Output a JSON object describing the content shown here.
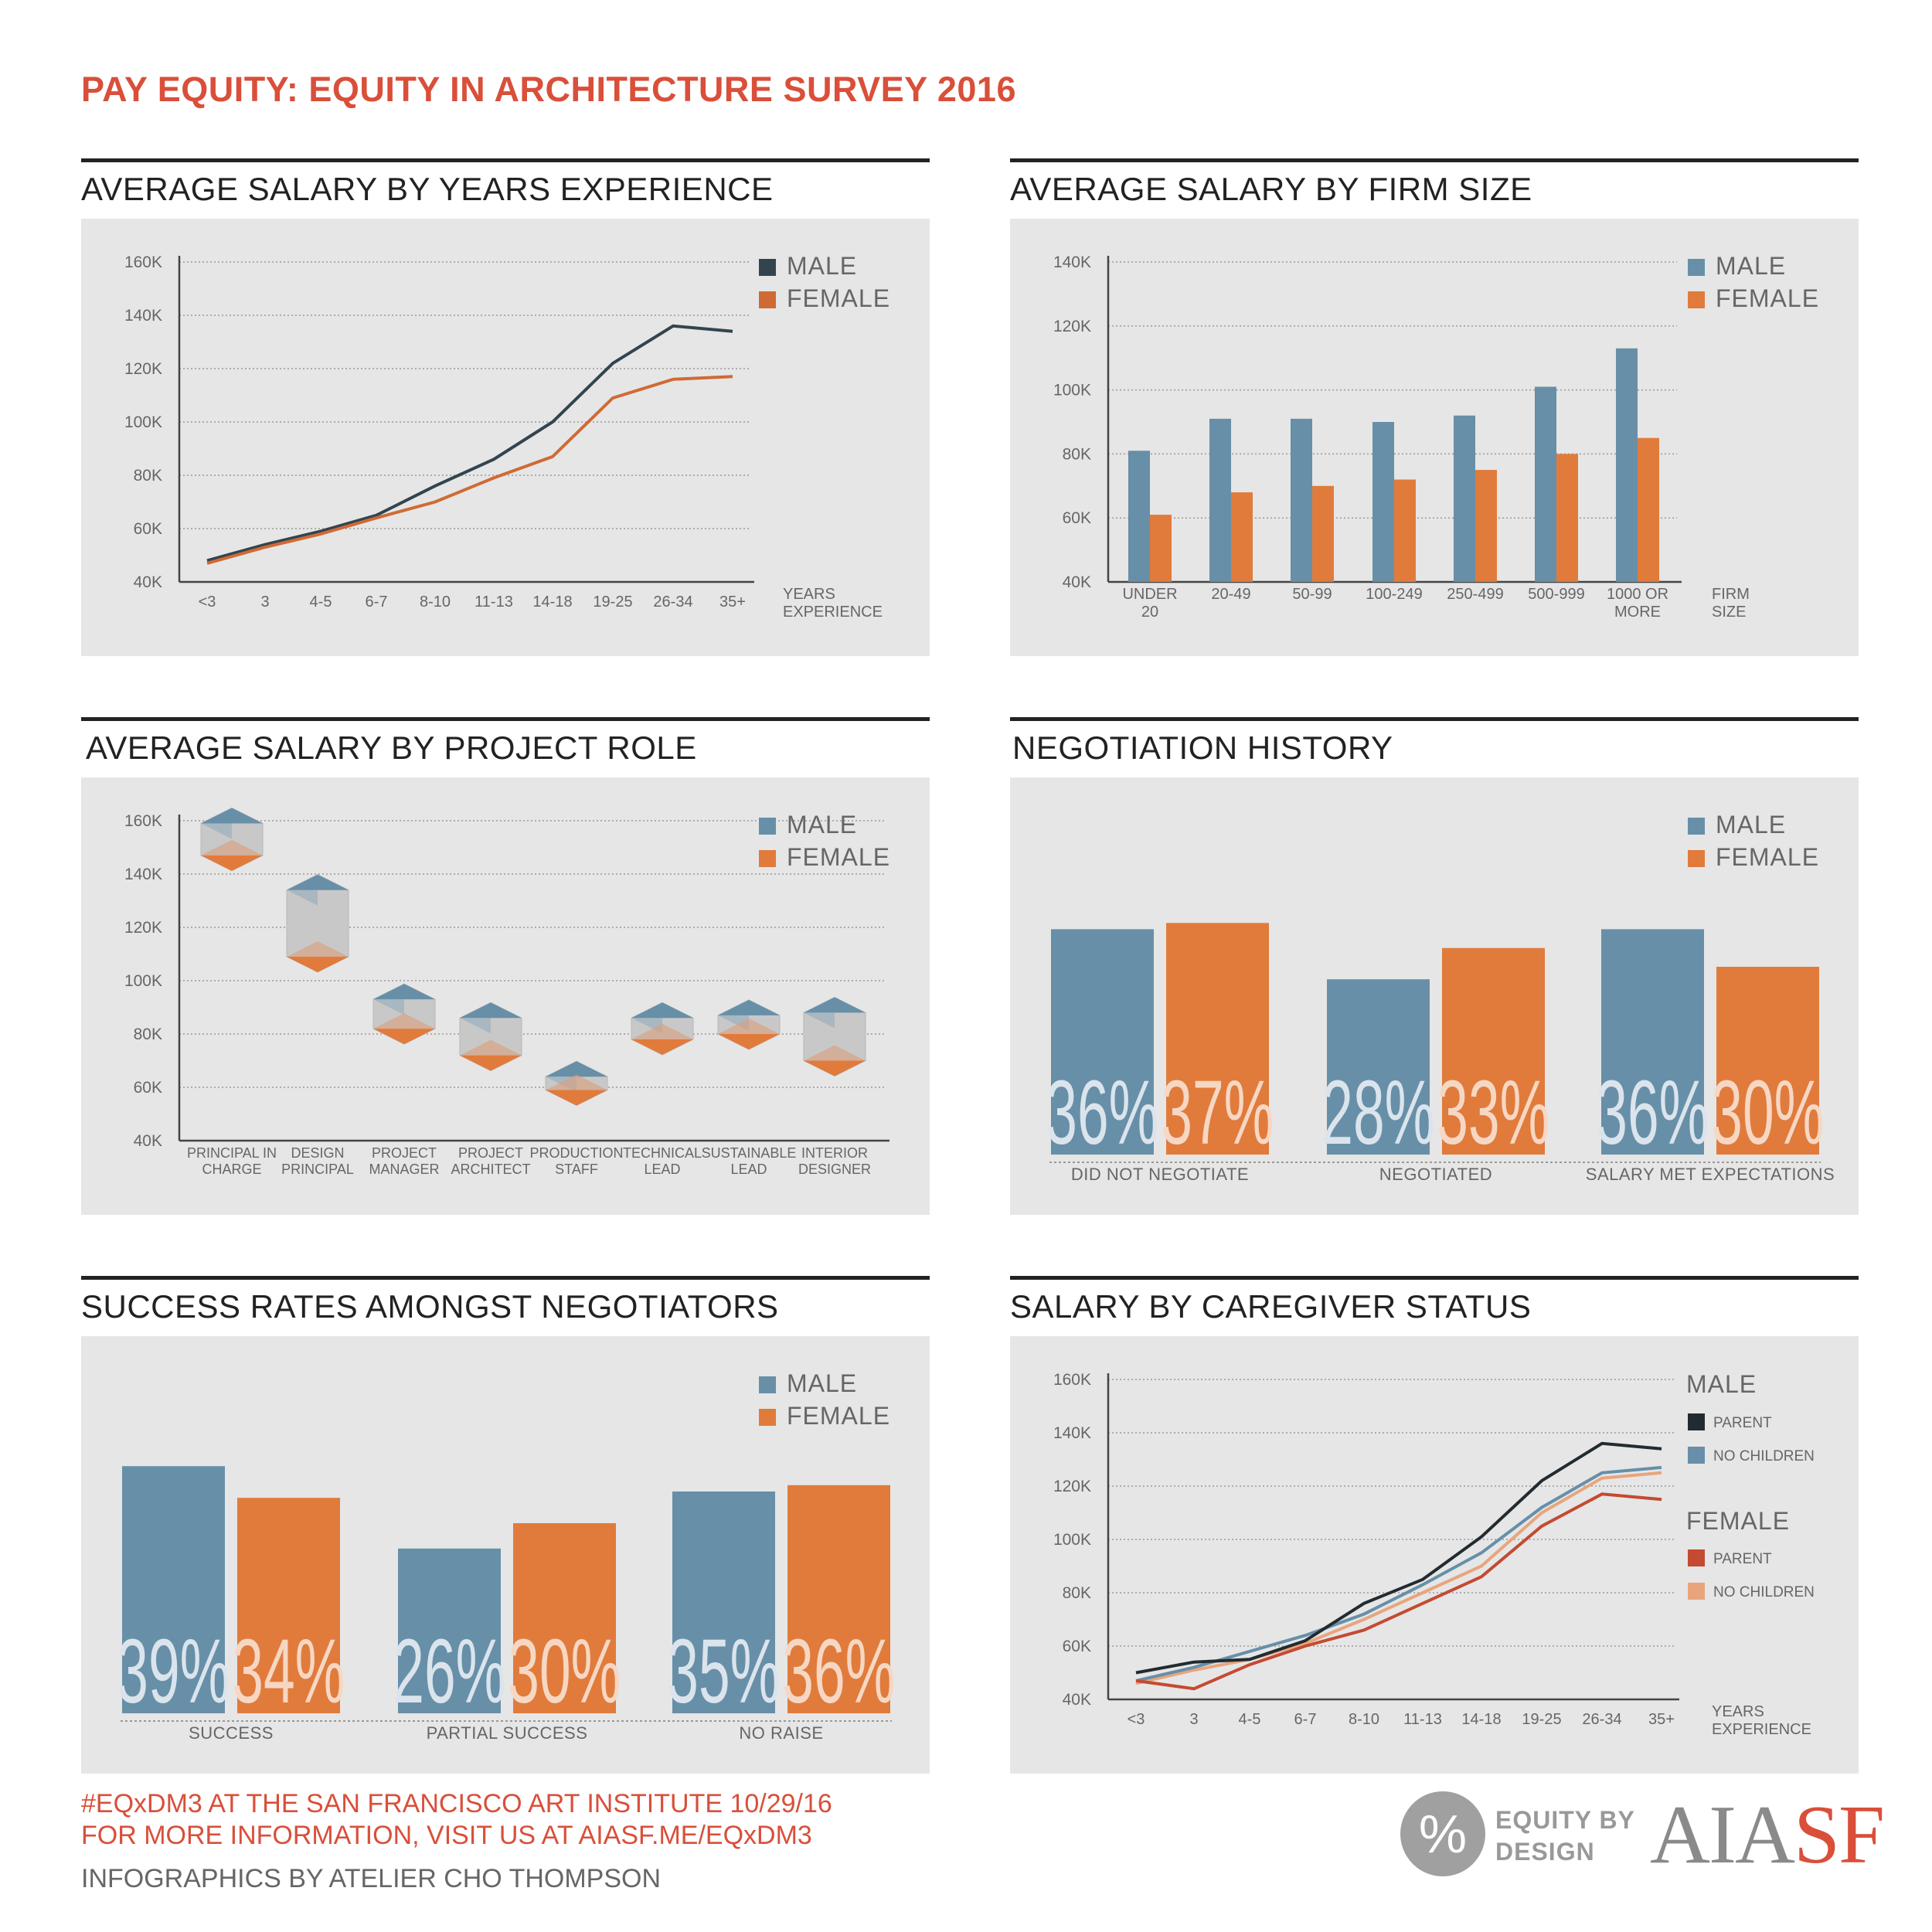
{
  "title": "PAY EQUITY: EQUITY IN ARCHITECTURE SURVEY 2016",
  "colors": {
    "male_blue": "#678fa8",
    "male_dark": "#33444f",
    "female_orange": "#e07b3c",
    "female_line": "#d06a35",
    "parent_male": "#222b30",
    "parent_female": "#c44a32",
    "nochild_female": "#e8a57c",
    "red": "#d94f3a"
  },
  "sections": {
    "years": "AVERAGE SALARY BY YEARS EXPERIENCE",
    "firm": "AVERAGE SALARY BY FIRM SIZE",
    "role": "AVERAGE SALARY BY PROJECT ROLE",
    "negotiation": "NEGOTIATION HISTORY",
    "success": "SUCCESS RATES AMONGST NEGOTIATORS",
    "caregiver": "SALARY BY CAREGIVER STATUS"
  },
  "legend": {
    "male": "MALE",
    "female": "FEMALE",
    "parent": "PARENT",
    "no_children": "NO CHILDREN"
  },
  "chart_data": [
    {
      "id": "years",
      "type": "line",
      "title": "AVERAGE SALARY BY YEARS EXPERIENCE",
      "categories": [
        "<3",
        "3",
        "4-5",
        "6-7",
        "8-10",
        "11-13",
        "14-18",
        "19-25",
        "26-34",
        "35+"
      ],
      "xlabel": [
        "YEARS",
        "EXPERIENCE"
      ],
      "yticks": [
        "40K",
        "60K",
        "80K",
        "100K",
        "120K",
        "140K",
        "160K"
      ],
      "ylim": [
        40,
        160
      ],
      "series": [
        {
          "name": "MALE",
          "values": [
            48,
            54,
            59,
            65,
            76,
            86,
            100,
            122,
            136,
            134
          ]
        },
        {
          "name": "FEMALE",
          "values": [
            47,
            53,
            58,
            64,
            70,
            79,
            87,
            109,
            116,
            117
          ]
        }
      ]
    },
    {
      "id": "firm",
      "type": "bar",
      "title": "AVERAGE SALARY BY FIRM SIZE",
      "categories": [
        [
          "UNDER",
          "20"
        ],
        [
          "20-49"
        ],
        [
          "50-99"
        ],
        [
          "100-249"
        ],
        [
          "250-499"
        ],
        [
          "500-999"
        ],
        [
          "1000 OR",
          "MORE"
        ]
      ],
      "xlabel": [
        "FIRM",
        "SIZE"
      ],
      "yticks": [
        "40K",
        "60K",
        "80K",
        "100K",
        "120K",
        "140K"
      ],
      "ylim": [
        40,
        140
      ],
      "series": [
        {
          "name": "MALE",
          "values": [
            81,
            91,
            91,
            90,
            92,
            101,
            113
          ]
        },
        {
          "name": "FEMALE",
          "values": [
            61,
            68,
            70,
            72,
            75,
            80,
            85
          ]
        }
      ]
    },
    {
      "id": "role",
      "type": "range",
      "title": "AVERAGE SALARY BY PROJECT ROLE",
      "categories": [
        [
          "PRINCIPAL IN",
          "CHARGE"
        ],
        [
          "DESIGN",
          "PRINCIPAL"
        ],
        [
          "PROJECT",
          "MANAGER"
        ],
        [
          "PROJECT",
          "ARCHITECT"
        ],
        [
          "PRODUCTION",
          "STAFF"
        ],
        [
          "TECHNICAL",
          "LEAD"
        ],
        [
          "SUSTAINABLE",
          "LEAD"
        ],
        [
          "INTERIOR",
          "DESIGNER"
        ]
      ],
      "yticks": [
        "40K",
        "60K",
        "80K",
        "100K",
        "120K",
        "140K",
        "160K"
      ],
      "ylim": [
        40,
        160
      ],
      "series": [
        {
          "name": "MALE",
          "values": [
            159,
            134,
            93,
            86,
            64,
            86,
            87,
            88
          ]
        },
        {
          "name": "FEMALE",
          "values": [
            147,
            109,
            82,
            72,
            59,
            78,
            80,
            70
          ]
        }
      ]
    },
    {
      "id": "negotiation",
      "type": "bar",
      "title": "NEGOTIATION HISTORY",
      "categories": [
        "DID NOT NEGOTIATE",
        "NEGOTIATED",
        "SALARY MET EXPECTATIONS"
      ],
      "series": [
        {
          "name": "MALE",
          "values": [
            36,
            28,
            36
          ],
          "labels": [
            "36%",
            "28%",
            "36%"
          ]
        },
        {
          "name": "FEMALE",
          "values": [
            37,
            33,
            30
          ],
          "labels": [
            "37%",
            "33%",
            "30%"
          ]
        }
      ]
    },
    {
      "id": "success",
      "type": "bar",
      "title": "SUCCESS RATES AMONGST NEGOTIATORS",
      "categories": [
        "SUCCESS",
        "PARTIAL SUCCESS",
        "NO RAISE"
      ],
      "series": [
        {
          "name": "MALE",
          "values": [
            39,
            26,
            35
          ],
          "labels": [
            "39%",
            "26%",
            "35%"
          ]
        },
        {
          "name": "FEMALE",
          "values": [
            34,
            30,
            36
          ],
          "labels": [
            "34%",
            "30%",
            "36%"
          ]
        }
      ]
    },
    {
      "id": "caregiver",
      "type": "line",
      "title": "SALARY BY CAREGIVER STATUS",
      "categories": [
        "<3",
        "3",
        "4-5",
        "6-7",
        "8-10",
        "11-13",
        "14-18",
        "19-25",
        "26-34",
        "35+"
      ],
      "xlabel": [
        "YEARS",
        "EXPERIENCE"
      ],
      "yticks": [
        "40K",
        "60K",
        "80K",
        "100K",
        "120K",
        "140K",
        "160K"
      ],
      "ylim": [
        40,
        160
      ],
      "series": [
        {
          "name": "MALE PARENT",
          "values": [
            50,
            54,
            55,
            62,
            76,
            85,
            101,
            122,
            136,
            134
          ]
        },
        {
          "name": "MALE NO CHILDREN",
          "values": [
            47,
            52,
            58,
            64,
            72,
            83,
            95,
            112,
            125,
            127
          ]
        },
        {
          "name": "FEMALE PARENT",
          "values": [
            47,
            44,
            53,
            60,
            66,
            76,
            86,
            105,
            117,
            115
          ]
        },
        {
          "name": "FEMALE NO CHILDREN",
          "values": [
            46,
            51,
            55,
            61,
            70,
            80,
            90,
            110,
            123,
            125
          ]
        }
      ]
    }
  ],
  "footer": {
    "line1": "#EQxDM3 AT THE SAN FRANCISCO ART INSTITUTE 10/29/16",
    "line2": "FOR MORE INFORMATION, VISIT US AT AIASF.ME/EQxDM3",
    "line3": "INFOGRAPHICS BY ATELIER CHO THOMPSON",
    "logo_symbol": "%",
    "logo_line1": "EQUITY BY",
    "logo_line2": "DESIGN",
    "aia": "AIA",
    "sf": "SF"
  }
}
